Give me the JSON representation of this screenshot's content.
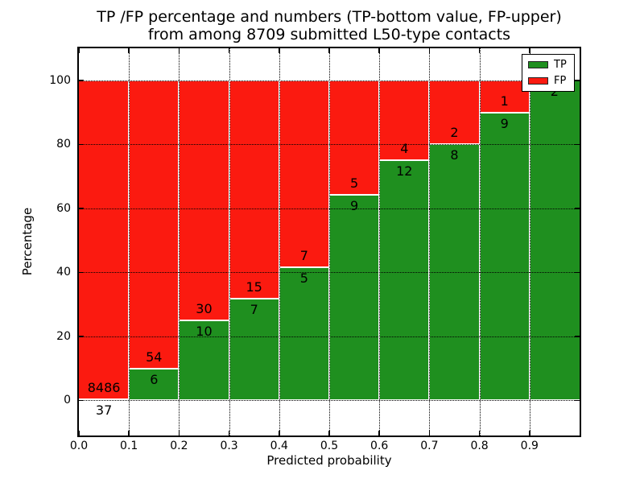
{
  "chart_data": {
    "type": "bar",
    "stacked": true,
    "orientation": "vertical",
    "title": "TP /FP percentage and numbers (TP-bottom value, FP-upper)\nfrom among 8709 submitted L50-type contacts",
    "title_lines": [
      "TP /FP percentage and numbers (TP-bottom value, FP-upper)",
      "from among 8709 submitted L50-type contacts"
    ],
    "total_contacts": 8709,
    "xlabel": "Predicted probability",
    "ylabel": "Percentage",
    "xlim": [
      0.0,
      1.0
    ],
    "ylim": [
      -11,
      110
    ],
    "grid": "dotted",
    "bar_edge_color": "#ffffff",
    "legend_position": "upper right",
    "xticks": [
      {
        "pos": 0.0,
        "label": "0.0"
      },
      {
        "pos": 0.1,
        "label": "0.1"
      },
      {
        "pos": 0.2,
        "label": "0.2"
      },
      {
        "pos": 0.3,
        "label": "0.3"
      },
      {
        "pos": 0.4,
        "label": "0.4"
      },
      {
        "pos": 0.5,
        "label": "0.5"
      },
      {
        "pos": 0.6,
        "label": "0.6"
      },
      {
        "pos": 0.7,
        "label": "0.7"
      },
      {
        "pos": 0.8,
        "label": "0.8"
      },
      {
        "pos": 0.9,
        "label": "0.9"
      }
    ],
    "yticks": [
      {
        "pos": 0,
        "label": "0"
      },
      {
        "pos": 20,
        "label": "20"
      },
      {
        "pos": 40,
        "label": "40"
      },
      {
        "pos": 60,
        "label": "60"
      },
      {
        "pos": 80,
        "label": "80"
      },
      {
        "pos": 100,
        "label": "100"
      }
    ],
    "bins": [
      {
        "x0": 0.0,
        "x1": 0.1,
        "tp_count": 37,
        "fp_count": 8486,
        "tp_pct": 0.43,
        "fp_pct": 99.57
      },
      {
        "x0": 0.1,
        "x1": 0.2,
        "tp_count": 6,
        "fp_count": 54,
        "tp_pct": 10.0,
        "fp_pct": 90.0
      },
      {
        "x0": 0.2,
        "x1": 0.3,
        "tp_count": 10,
        "fp_count": 30,
        "tp_pct": 25.0,
        "fp_pct": 75.0
      },
      {
        "x0": 0.3,
        "x1": 0.4,
        "tp_count": 7,
        "fp_count": 15,
        "tp_pct": 31.82,
        "fp_pct": 68.18
      },
      {
        "x0": 0.4,
        "x1": 0.5,
        "tp_count": 5,
        "fp_count": 7,
        "tp_pct": 41.67,
        "fp_pct": 58.33
      },
      {
        "x0": 0.5,
        "x1": 0.6,
        "tp_count": 9,
        "fp_count": 5,
        "tp_pct": 64.29,
        "fp_pct": 35.71
      },
      {
        "x0": 0.6,
        "x1": 0.7,
        "tp_count": 12,
        "fp_count": 4,
        "tp_pct": 75.0,
        "fp_pct": 25.0
      },
      {
        "x0": 0.7,
        "x1": 0.8,
        "tp_count": 8,
        "fp_count": 2,
        "tp_pct": 80.0,
        "fp_pct": 20.0
      },
      {
        "x0": 0.8,
        "x1": 0.9,
        "tp_count": 9,
        "fp_count": 1,
        "tp_pct": 90.0,
        "fp_pct": 10.0
      },
      {
        "x0": 0.9,
        "x1": 1.0,
        "tp_count": 2,
        "fp_count": null,
        "tp_pct": 100.0,
        "fp_pct": 0.0
      }
    ],
    "series": [
      {
        "name": "TP",
        "color": "#1f8f1f",
        "values_pct": [
          0.43,
          10.0,
          25.0,
          31.82,
          41.67,
          64.29,
          75.0,
          80.0,
          90.0,
          100.0
        ]
      },
      {
        "name": "FP",
        "color": "#fb1a10",
        "values_pct": [
          99.57,
          90.0,
          75.0,
          68.18,
          58.33,
          35.71,
          25.0,
          20.0,
          10.0,
          0.0
        ]
      }
    ],
    "legend": [
      {
        "label": "TP",
        "color": "#1f8f1f"
      },
      {
        "label": "FP",
        "color": "#fb1a10"
      }
    ]
  },
  "colors": {
    "tp_green": "#1f8f1f",
    "fp_red": "#fb1a10",
    "background": "#ffffff",
    "text": "#000000",
    "grid": "#000000"
  }
}
